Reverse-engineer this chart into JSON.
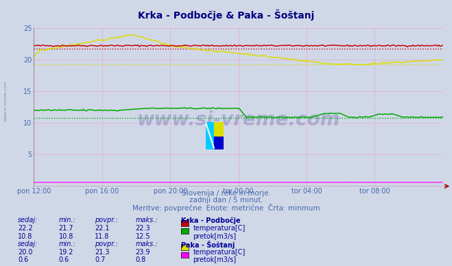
{
  "title": "Krka - Podbočje & Paka - Šoštanj",
  "subtitle1": "Slovenija / reke in morje.",
  "subtitle2": "zadnji dan / 5 minut.",
  "subtitle3": "Meritve: povprečne  Enote: metrične  Črta: minmum",
  "bg_color": "#d0d8e8",
  "title_color": "#000080",
  "subtitle_color": "#4466aa",
  "watermark": "www.si-vreme.com",
  "watermark_color": "#3a3a8a",
  "tick_color": "#4466aa",
  "grid_color": "#ff69b4",
  "xaxis_color": "#aa0000",
  "xtick_labels": [
    "pon 12:00",
    "pon 16:00",
    "pon 20:00",
    "tor 00:00",
    "tor 04:00",
    "tor 08:00"
  ],
  "xtick_positions": [
    0,
    4,
    8,
    12,
    16,
    20
  ],
  "krka_temp_color": "#cc0000",
  "krka_temp_min": 21.7,
  "krka_temp_max": 22.3,
  "krka_temp_avg": 22.1,
  "krka_temp_now": 22.2,
  "krka_pretok_color": "#00aa00",
  "krka_pretok_min": 10.8,
  "krka_pretok_max": 12.5,
  "krka_pretok_avg": 11.8,
  "krka_pretok_now": 10.8,
  "paka_temp_color": "#dddd00",
  "paka_temp_min": 19.2,
  "paka_temp_max": 23.9,
  "paka_temp_avg": 21.3,
  "paka_temp_now": 20.0,
  "paka_pretok_color": "#ff00ff",
  "paka_pretok_min": 0.6,
  "paka_pretok_max": 0.8,
  "paka_pretok_avg": 0.7,
  "paka_pretok_now": 0.6,
  "table_label_color": "#000099",
  "table_value_color": "#000088",
  "station1": "Krka - Podbočje",
  "station2": "Paka - Šoštanj"
}
